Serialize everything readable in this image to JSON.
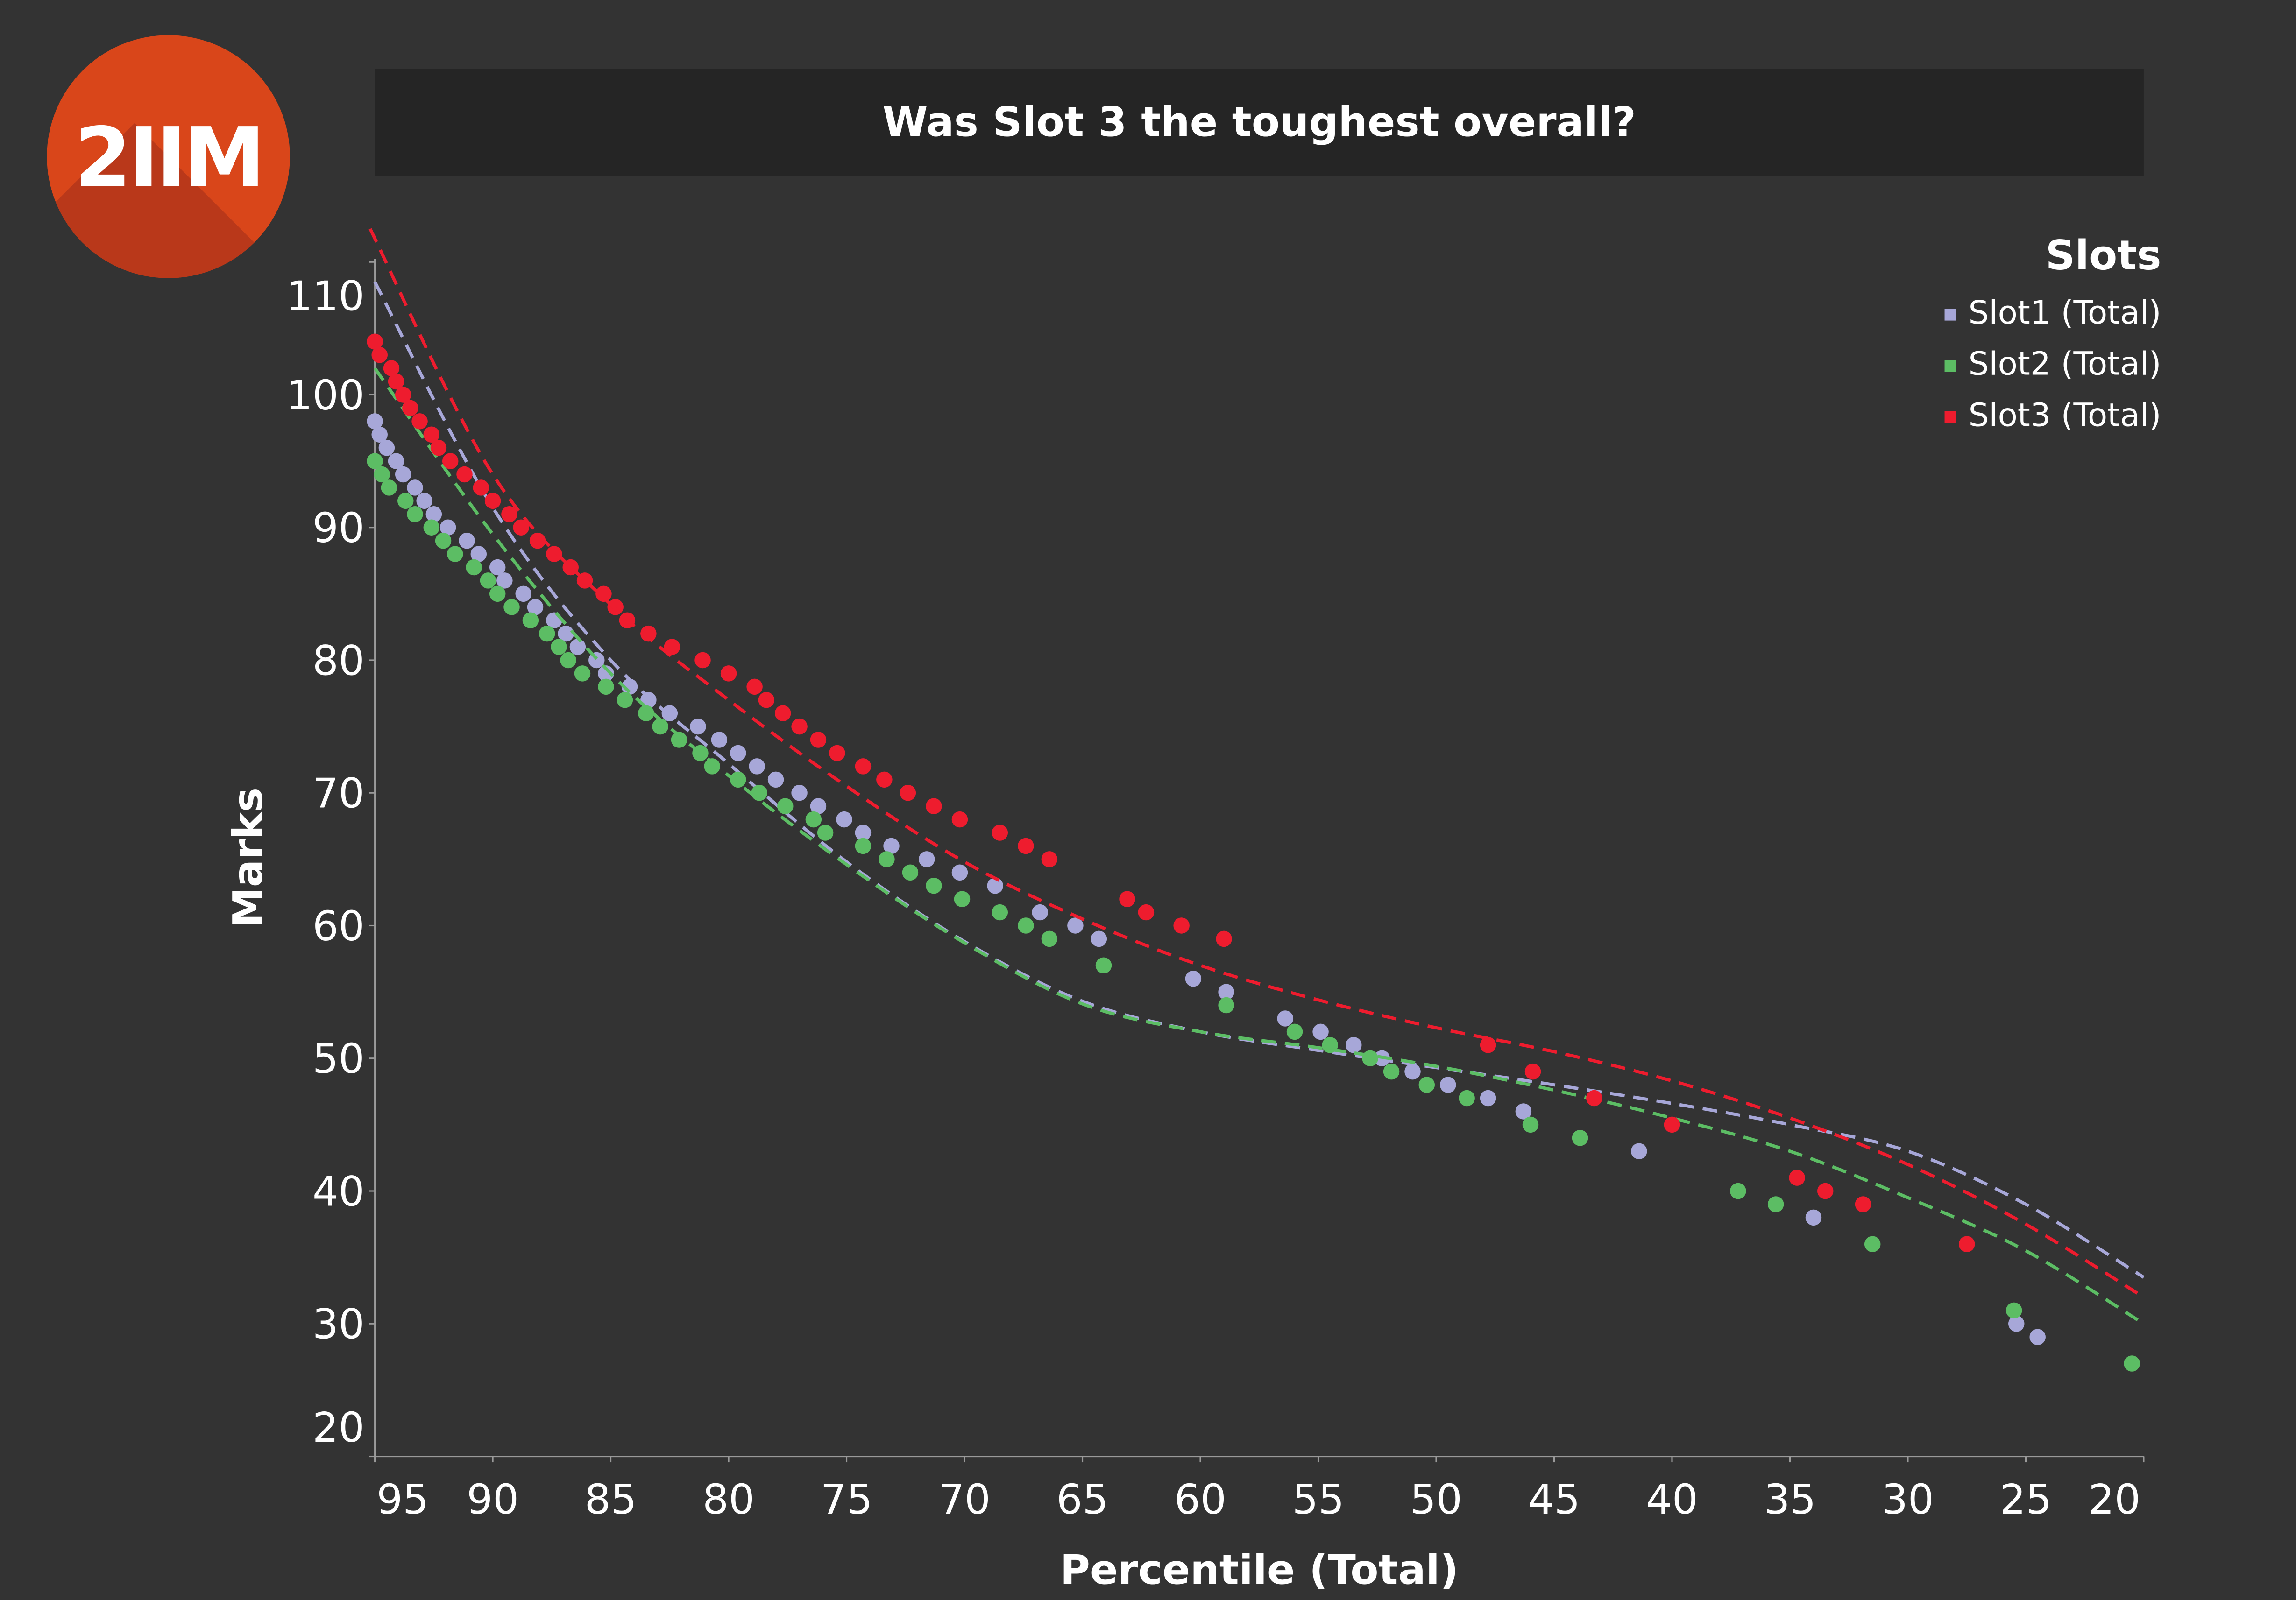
{
  "logo_text": "2IIM",
  "chart_data": {
    "type": "scatter",
    "title": "Was Slot 3 the toughest overall?",
    "xlabel": "Percentile (Total)",
    "ylabel": "Marks",
    "xlim": [
      95,
      20
    ],
    "ylim": [
      20,
      110
    ],
    "xticks": [
      95,
      90,
      85,
      80,
      75,
      70,
      65,
      60,
      55,
      50,
      45,
      40,
      35,
      30,
      25,
      20
    ],
    "yticks": [
      20,
      30,
      40,
      50,
      60,
      70,
      80,
      90,
      100,
      110
    ],
    "legend": {
      "title": "Slots",
      "placement": "top-right"
    },
    "series": [
      {
        "name": "Slot1 (Total)",
        "color": "#a7a7d8",
        "points": [
          [
            95,
            98
          ],
          [
            94.8,
            97
          ],
          [
            94.5,
            96
          ],
          [
            94.1,
            95
          ],
          [
            93.8,
            94
          ],
          [
            93.3,
            93
          ],
          [
            92.9,
            92
          ],
          [
            92.5,
            91
          ],
          [
            91.9,
            90
          ],
          [
            91.1,
            89
          ],
          [
            90.6,
            88
          ],
          [
            89.8,
            87
          ],
          [
            89.5,
            86
          ],
          [
            88.7,
            85
          ],
          [
            88.2,
            84
          ],
          [
            87.4,
            83
          ],
          [
            86.9,
            82
          ],
          [
            86.4,
            81
          ],
          [
            85.6,
            80
          ],
          [
            85.2,
            79
          ],
          [
            84.2,
            78
          ],
          [
            83.4,
            77
          ],
          [
            82.5,
            76
          ],
          [
            81.3,
            75
          ],
          [
            80.4,
            74
          ],
          [
            79.6,
            73
          ],
          [
            78.8,
            72
          ],
          [
            78,
            71
          ],
          [
            77,
            70
          ],
          [
            76.2,
            69
          ],
          [
            75.1,
            68
          ],
          [
            74.3,
            67
          ],
          [
            73.1,
            66
          ],
          [
            71.6,
            65
          ],
          [
            70.2,
            64
          ],
          [
            68.7,
            63
          ],
          [
            66.8,
            61
          ],
          [
            65.3,
            60
          ],
          [
            64.3,
            59
          ],
          [
            60.3,
            56
          ],
          [
            58.9,
            55
          ],
          [
            56.4,
            53
          ],
          [
            54.9,
            52
          ],
          [
            53.5,
            51
          ],
          [
            52.3,
            50
          ],
          [
            51,
            49
          ],
          [
            49.5,
            48
          ],
          [
            47.8,
            47
          ],
          [
            46.3,
            46
          ],
          [
            41.4,
            43
          ],
          [
            34,
            38
          ],
          [
            25.4,
            30
          ],
          [
            24.5,
            29
          ]
        ],
        "trend": [
          [
            95,
            108.5
          ],
          [
            90,
            91.5
          ],
          [
            85,
            80
          ],
          [
            80,
            72.2
          ],
          [
            75,
            64.8
          ],
          [
            70,
            58.8
          ],
          [
            65,
            54.3
          ],
          [
            60,
            52
          ],
          [
            55,
            50.6
          ],
          [
            50,
            49.3
          ],
          [
            45,
            48
          ],
          [
            40,
            46.6
          ],
          [
            35,
            45
          ],
          [
            30,
            43
          ],
          [
            25,
            39
          ],
          [
            20,
            33.5
          ]
        ]
      },
      {
        "name": "Slot2 (Total)",
        "color": "#5cbd64",
        "points": [
          [
            95,
            95
          ],
          [
            94.7,
            94
          ],
          [
            94.4,
            93
          ],
          [
            93.7,
            92
          ],
          [
            93.3,
            91
          ],
          [
            92.6,
            90
          ],
          [
            92.1,
            89
          ],
          [
            91.6,
            88
          ],
          [
            90.8,
            87
          ],
          [
            90.2,
            86
          ],
          [
            89.8,
            85
          ],
          [
            89.2,
            84
          ],
          [
            88.4,
            83
          ],
          [
            87.7,
            82
          ],
          [
            87.2,
            81
          ],
          [
            86.8,
            80
          ],
          [
            86.2,
            79
          ],
          [
            85.2,
            78
          ],
          [
            84.4,
            77
          ],
          [
            83.5,
            76
          ],
          [
            82.9,
            75
          ],
          [
            82.1,
            74
          ],
          [
            81.2,
            73
          ],
          [
            80.7,
            72
          ],
          [
            79.6,
            71
          ],
          [
            78.7,
            70
          ],
          [
            77.6,
            69
          ],
          [
            76.4,
            68
          ],
          [
            75.9,
            67
          ],
          [
            74.3,
            66
          ],
          [
            73.3,
            65
          ],
          [
            72.3,
            64
          ],
          [
            71.3,
            63
          ],
          [
            70.1,
            62
          ],
          [
            68.5,
            61
          ],
          [
            67.4,
            60
          ],
          [
            66.4,
            59
          ],
          [
            64.1,
            57
          ],
          [
            58.9,
            54
          ],
          [
            56,
            52
          ],
          [
            54.5,
            51
          ],
          [
            52.8,
            50
          ],
          [
            51.9,
            49
          ],
          [
            50.4,
            48
          ],
          [
            48.7,
            47
          ],
          [
            46,
            45
          ],
          [
            43.9,
            44
          ],
          [
            37.2,
            40
          ],
          [
            35.6,
            39
          ],
          [
            31.5,
            36
          ],
          [
            25.5,
            31
          ],
          [
            20.5,
            27
          ]
        ],
        "trend": [
          [
            95,
            102
          ],
          [
            90,
            89.5
          ],
          [
            85,
            79
          ],
          [
            80,
            71.3
          ],
          [
            75,
            64.6
          ],
          [
            70,
            58.7
          ],
          [
            65,
            54.1
          ],
          [
            60,
            52
          ],
          [
            55,
            50.8
          ],
          [
            50,
            49.4
          ],
          [
            45,
            47.6
          ],
          [
            40,
            45.5
          ],
          [
            35,
            43
          ],
          [
            30,
            39.5
          ],
          [
            25,
            35.5
          ],
          [
            20,
            30
          ]
        ]
      },
      {
        "name": "Slot3 (Total)",
        "color": "#ee1c2e",
        "points": [
          [
            95,
            104
          ],
          [
            94.8,
            103
          ],
          [
            94.3,
            102
          ],
          [
            94.1,
            101
          ],
          [
            93.8,
            100
          ],
          [
            93.5,
            99
          ],
          [
            93.1,
            98
          ],
          [
            92.6,
            97
          ],
          [
            92.3,
            96
          ],
          [
            91.8,
            95
          ],
          [
            91.2,
            94
          ],
          [
            90.5,
            93
          ],
          [
            90,
            92
          ],
          [
            89.3,
            91
          ],
          [
            88.8,
            90
          ],
          [
            88.1,
            89
          ],
          [
            87.4,
            88
          ],
          [
            86.7,
            87
          ],
          [
            86.1,
            86
          ],
          [
            85.3,
            85
          ],
          [
            84.8,
            84
          ],
          [
            84.3,
            83
          ],
          [
            83.4,
            82
          ],
          [
            82.4,
            81
          ],
          [
            81.1,
            80
          ],
          [
            80,
            79
          ],
          [
            78.9,
            78
          ],
          [
            78.4,
            77
          ],
          [
            77.7,
            76
          ],
          [
            77,
            75
          ],
          [
            76.2,
            74
          ],
          [
            75.4,
            73
          ],
          [
            74.3,
            72
          ],
          [
            73.4,
            71
          ],
          [
            72.4,
            70
          ],
          [
            71.3,
            69
          ],
          [
            70.2,
            68
          ],
          [
            68.5,
            67
          ],
          [
            67.4,
            66
          ],
          [
            66.4,
            65
          ],
          [
            63.1,
            62
          ],
          [
            62.3,
            61
          ],
          [
            60.8,
            60
          ],
          [
            59,
            59
          ],
          [
            47.8,
            51
          ],
          [
            45.9,
            49
          ],
          [
            43.3,
            47
          ],
          [
            40,
            45
          ],
          [
            34.7,
            41
          ],
          [
            33.5,
            40
          ],
          [
            31.9,
            39
          ],
          [
            27.5,
            36
          ]
        ],
        "trend": [
          [
            95.2,
            112.5
          ],
          [
            90,
            94
          ],
          [
            85,
            84.2
          ],
          [
            80,
            77
          ],
          [
            75,
            70.5
          ],
          [
            70,
            64.8
          ],
          [
            65,
            60.5
          ],
          [
            60,
            57
          ],
          [
            55,
            54.4
          ],
          [
            50,
            52.3
          ],
          [
            45,
            50.5
          ],
          [
            40,
            48.3
          ],
          [
            35,
            45.5
          ],
          [
            30,
            42
          ],
          [
            25,
            37.5
          ],
          [
            20,
            32
          ]
        ]
      }
    ]
  }
}
